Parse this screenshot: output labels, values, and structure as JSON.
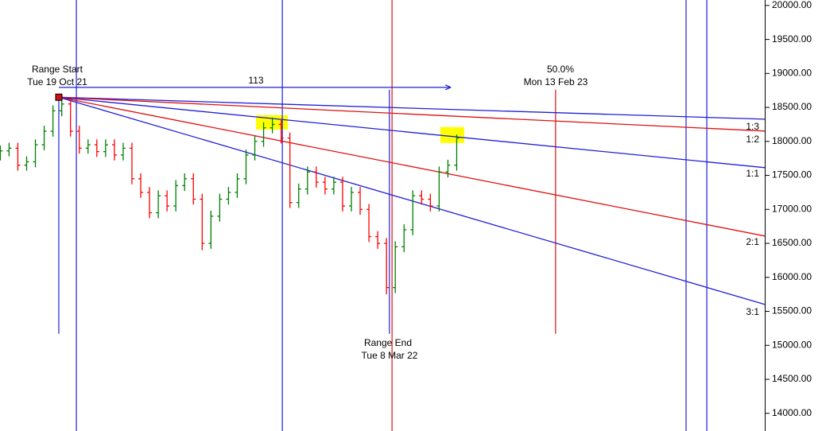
{
  "chart_data": {
    "type": "ohlc",
    "xlim": [
      -20.1,
      241.3
    ],
    "ylim": [
      13740,
      20080
    ],
    "yticks": [
      {
        "value": 14000,
        "label": "14000.00"
      },
      {
        "value": 14500,
        "label": "14500.00"
      },
      {
        "value": 15000,
        "label": "15000.00"
      },
      {
        "value": 15500,
        "label": "15500.00"
      },
      {
        "value": 16000,
        "label": "16000.00"
      },
      {
        "value": 16500,
        "label": "16500.00"
      },
      {
        "value": 17000,
        "label": "17000.00"
      },
      {
        "value": 17500,
        "label": "17500.00"
      },
      {
        "value": 18000,
        "label": "18000.00"
      },
      {
        "value": 18500,
        "label": "18500.00"
      },
      {
        "value": 19000,
        "label": "19000.00"
      },
      {
        "value": 19500,
        "label": "19500.00"
      },
      {
        "value": 20000,
        "label": "20000.00"
      }
    ],
    "up_color": "#008000",
    "down_color": "#ff0000",
    "ohlc": {
      "x": [
        -20,
        -17,
        -14,
        -11,
        -8,
        -5,
        -2,
        1,
        4,
        7,
        10,
        13,
        16,
        19,
        22,
        25,
        28,
        31,
        34,
        37,
        40,
        43,
        46,
        49,
        52,
        55,
        58,
        61,
        64,
        67,
        70,
        73,
        76,
        79,
        82,
        85,
        88,
        91,
        94,
        97,
        100,
        103,
        106,
        109,
        112,
        115,
        118,
        121,
        124,
        127,
        130,
        133,
        136
      ],
      "open": [
        17800,
        17860,
        17900,
        17650,
        17700,
        17950,
        18150,
        18450,
        18550,
        18150,
        17900,
        17950,
        17850,
        17950,
        17800,
        17900,
        17450,
        17250,
        16950,
        17200,
        17050,
        17350,
        17450,
        17150,
        16500,
        16900,
        17150,
        17250,
        17450,
        17800,
        18000,
        18200,
        18250,
        18050,
        17100,
        17300,
        17550,
        17400,
        17300,
        17400,
        17050,
        17250,
        17000,
        16600,
        16500,
        15850,
        16450,
        16700,
        17200,
        17150,
        17050,
        17550,
        17650
      ],
      "high": [
        17940,
        17980,
        17980,
        17780,
        18030,
        18230,
        18530,
        18650,
        18630,
        18230,
        18030,
        18030,
        18030,
        18030,
        17980,
        17980,
        17530,
        17330,
        17280,
        17280,
        17430,
        17530,
        17530,
        17230,
        16980,
        17230,
        17330,
        17530,
        17880,
        18080,
        18280,
        18350,
        18330,
        18130,
        17380,
        17630,
        17630,
        17480,
        17480,
        17480,
        17330,
        17330,
        17080,
        16680,
        16580,
        16530,
        16780,
        17280,
        17280,
        17230,
        17630,
        17730,
        18100
      ],
      "low": [
        17720,
        17780,
        17570,
        17570,
        17620,
        17870,
        18070,
        18370,
        18070,
        17820,
        17820,
        17770,
        17770,
        17720,
        17720,
        17370,
        17170,
        16870,
        16870,
        16970,
        16970,
        17270,
        17070,
        16400,
        16420,
        16820,
        17070,
        17170,
        17370,
        17720,
        17920,
        18120,
        17970,
        17020,
        17020,
        17220,
        17320,
        17220,
        17220,
        16970,
        16970,
        16920,
        16520,
        16420,
        15750,
        15770,
        16370,
        16620,
        17070,
        16970,
        16970,
        17470,
        17570
      ],
      "close": [
        17860,
        17900,
        17650,
        17700,
        17950,
        18150,
        18450,
        18550,
        18150,
        17900,
        17950,
        17850,
        17950,
        17800,
        17900,
        17450,
        17250,
        16950,
        17200,
        17050,
        17350,
        17450,
        17150,
        16500,
        16900,
        17150,
        17250,
        17450,
        17800,
        18000,
        18200,
        18250,
        18050,
        17100,
        17300,
        17550,
        17400,
        17300,
        17400,
        17050,
        17250,
        17000,
        16600,
        16500,
        15850,
        16450,
        16700,
        17200,
        17150,
        17050,
        17550,
        17650,
        18050
      ]
    },
    "fan_lines": [
      {
        "label": "1:3",
        "color": "#1f1fd8",
        "x": [
          0,
          241.3
        ],
        "y": [
          18650,
          18327
        ]
      },
      {
        "label": "1:2",
        "color": "#e01010",
        "x": [
          0,
          241.3
        ],
        "y": [
          18650,
          18152
        ]
      },
      {
        "label": "1:1",
        "color": "#1f1fd8",
        "x": [
          0,
          241.3
        ],
        "y": [
          18650,
          17614
        ]
      },
      {
        "label": "2:1",
        "color": "#e01010",
        "x": [
          0,
          241.3
        ],
        "y": [
          18650,
          16608
        ]
      },
      {
        "label": "3:1",
        "color": "#1f1fd8",
        "x": [
          0,
          241.3
        ],
        "y": [
          18650,
          15602
        ]
      }
    ],
    "vertical_lines": [
      {
        "x": 6,
        "color": "#1f1fd8",
        "y": [
          13740,
          20080
        ]
      },
      {
        "x": 76.4,
        "color": "#1f1fd8",
        "y": [
          13740,
          20080
        ]
      },
      {
        "x": 113.9,
        "color": "#e01010",
        "y": [
          13740,
          20080
        ]
      },
      {
        "x": 214.4,
        "color": "#1f1fd8",
        "y": [
          13740,
          20080
        ]
      },
      {
        "x": 221.5,
        "color": "#1f1fd8",
        "y": [
          13740,
          20080
        ]
      },
      {
        "x": 0,
        "color": "#1f1fd8",
        "y": [
          15170,
          18643
        ]
      },
      {
        "x": 113,
        "color": "#1f1fd8",
        "y": [
          15170,
          18760
        ]
      },
      {
        "x": 169.8,
        "color": "#e01010",
        "y": [
          15170,
          18760
        ]
      }
    ],
    "range_arrow": {
      "label": "113",
      "x": [
        0,
        134
      ],
      "y": 18795,
      "color": "#1f1fd8"
    },
    "highlights": [
      {
        "x": [
          67.4,
          78.3
        ],
        "y": [
          18175,
          18386
        ],
        "color": "#ffff00"
      },
      {
        "x": [
          130.4,
          138.6
        ],
        "y": [
          17977,
          18211
        ],
        "color": "#ffff00"
      }
    ],
    "start_marker": {
      "x": 0,
      "y": 18650,
      "color": "#d01010"
    },
    "annotations": {
      "range_start": [
        "Range Start",
        "Tue 19 Oct 21"
      ],
      "range_end": [
        "Range End",
        "Tue 8 Mar 22"
      ],
      "retracement": [
        "50.0%",
        "Mon 13 Feb 23"
      ]
    }
  }
}
